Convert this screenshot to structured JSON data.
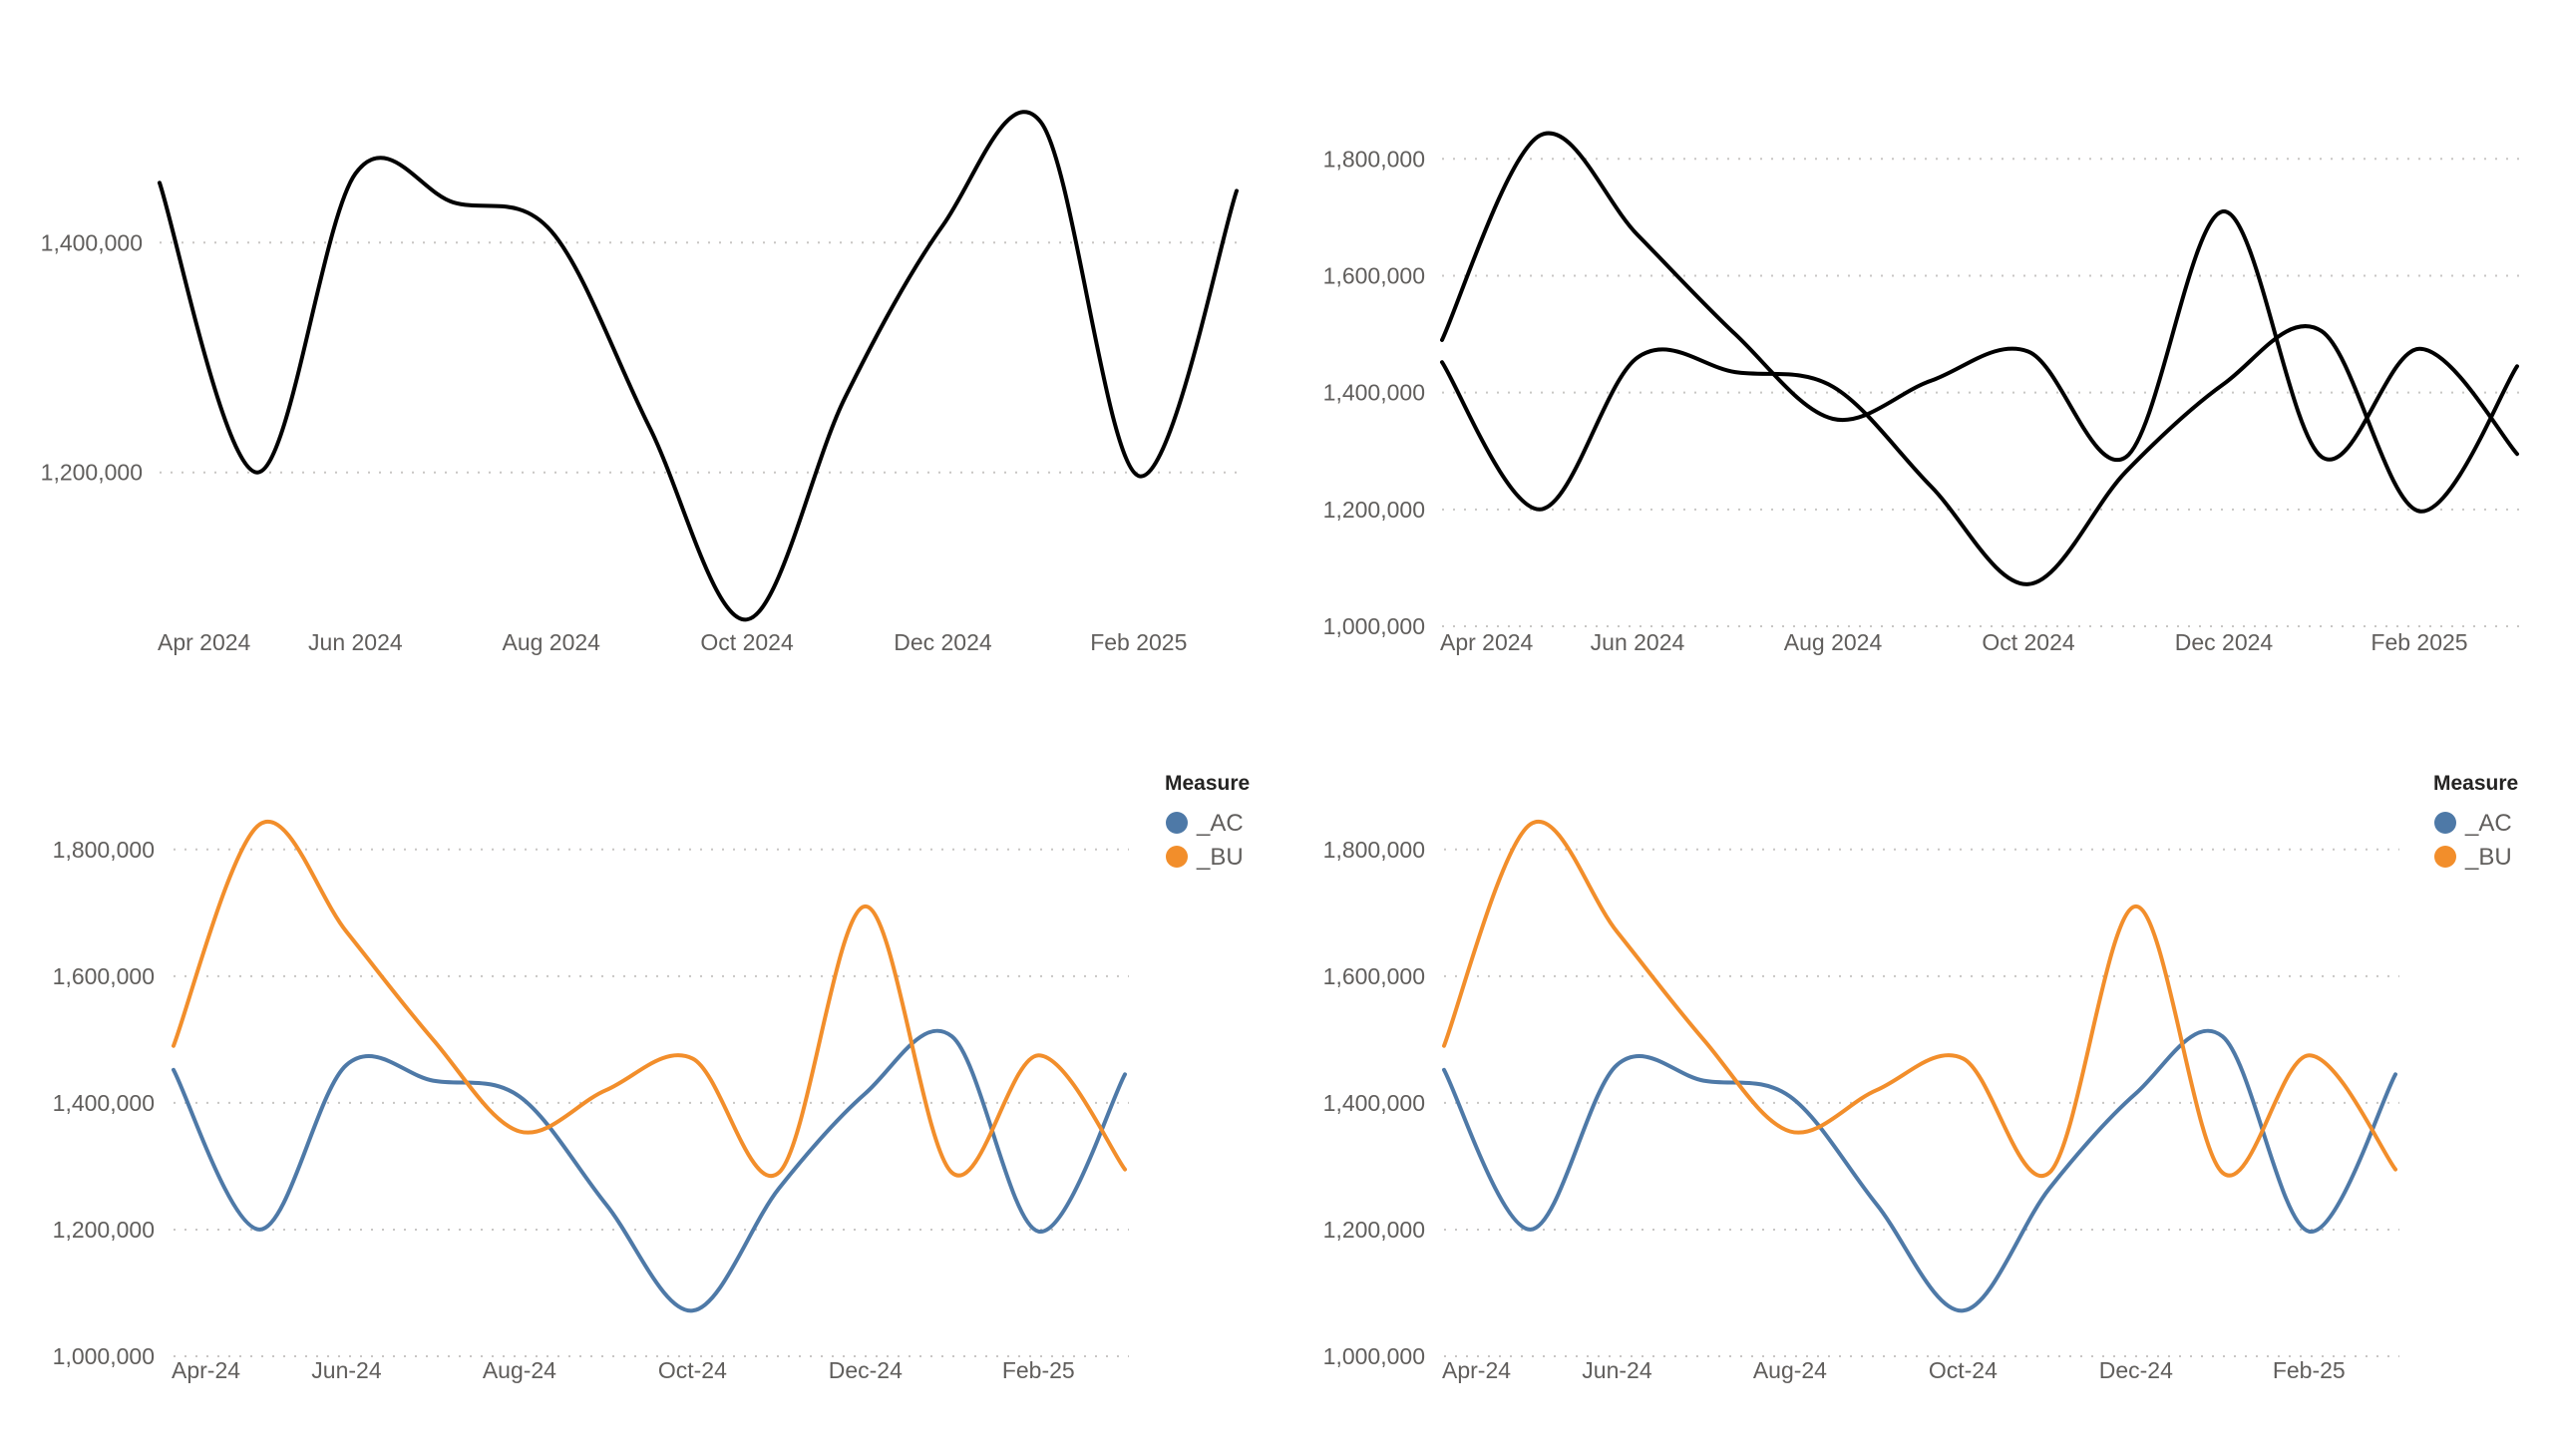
{
  "chart_data": [
    {
      "type": "line",
      "x": [
        "Apr 2024",
        "May 2024",
        "Jun 2024",
        "Jul 2024",
        "Aug 2024",
        "Sep 2024",
        "Oct 2024",
        "Nov 2024",
        "Dec 2024",
        "Jan 2025",
        "Feb 2025",
        "Mar 2025"
      ],
      "x_tick_labels": [
        "Apr 2024",
        "Jun 2024",
        "Aug 2024",
        "Oct 2024",
        "Dec 2024",
        "Feb 2025"
      ],
      "ylim": [
        1060000,
        1520000
      ],
      "y_ticks": [
        1200000,
        1400000
      ],
      "y_tick_labels": [
        "1,200,000",
        "1,400,000"
      ],
      "series": [
        {
          "values": [
            1452000,
            1200000,
            1460000,
            1435000,
            1410000,
            1240000,
            1072000,
            1265000,
            1415000,
            1505000,
            1197000,
            1445000
          ],
          "color": "#000000"
        }
      ],
      "grid": true,
      "legend": false
    },
    {
      "type": "line",
      "x": [
        "Apr 2024",
        "May 2024",
        "Jun 2024",
        "Jul 2024",
        "Aug 2024",
        "Sep 2024",
        "Oct 2024",
        "Nov 2024",
        "Dec 2024",
        "Jan 2025",
        "Feb 2025",
        "Mar 2025"
      ],
      "x_tick_labels": [
        "Apr 2024",
        "Jun 2024",
        "Aug 2024",
        "Oct 2024",
        "Dec 2024",
        "Feb 2025"
      ],
      "ylim": [
        1000000,
        1850000
      ],
      "y_ticks": [
        1000000,
        1200000,
        1400000,
        1600000,
        1800000
      ],
      "y_tick_labels": [
        "1,000,000",
        "1,200,000",
        "1,400,000",
        "1,600,000",
        "1,800,000"
      ],
      "series": [
        {
          "values": [
            1452000,
            1200000,
            1460000,
            1435000,
            1410000,
            1240000,
            1072000,
            1265000,
            1415000,
            1505000,
            1197000,
            1445000
          ],
          "color": "#000000"
        },
        {
          "values": [
            1490000,
            1840000,
            1670000,
            1500000,
            1355000,
            1420000,
            1470000,
            1290000,
            1710000,
            1290000,
            1475000,
            1295000
          ],
          "color": "#000000"
        }
      ],
      "grid": true,
      "legend": false
    },
    {
      "type": "line",
      "x": [
        "Apr-24",
        "May-24",
        "Jun-24",
        "Jul-24",
        "Aug-24",
        "Sep-24",
        "Oct-24",
        "Nov-24",
        "Dec-24",
        "Jan-25",
        "Feb-25",
        "Mar-25"
      ],
      "x_tick_labels": [
        "Apr-24",
        "Jun-24",
        "Aug-24",
        "Oct-24",
        "Dec-24",
        "Feb-25"
      ],
      "ylim": [
        1000000,
        1850000
      ],
      "y_ticks": [
        1000000,
        1200000,
        1400000,
        1600000,
        1800000
      ],
      "y_tick_labels": [
        "1,000,000",
        "1,200,000",
        "1,400,000",
        "1,600,000",
        "1,800,000"
      ],
      "series": [
        {
          "name": "_AC",
          "values": [
            1452000,
            1200000,
            1460000,
            1435000,
            1410000,
            1240000,
            1072000,
            1265000,
            1415000,
            1505000,
            1197000,
            1445000
          ],
          "color": "#4e79a7"
        },
        {
          "name": "_BU",
          "values": [
            1490000,
            1840000,
            1670000,
            1500000,
            1355000,
            1420000,
            1470000,
            1290000,
            1710000,
            1290000,
            1475000,
            1295000
          ],
          "color": "#f28e2b"
        }
      ],
      "legend_title": "Measure",
      "legend_position": "top-right",
      "grid": true,
      "legend": true
    },
    {
      "type": "line",
      "x": [
        "Apr-24",
        "May-24",
        "Jun-24",
        "Jul-24",
        "Aug-24",
        "Sep-24",
        "Oct-24",
        "Nov-24",
        "Dec-24",
        "Jan-25",
        "Feb-25",
        "Mar-25"
      ],
      "x_tick_labels": [
        "Apr-24",
        "Jun-24",
        "Aug-24",
        "Oct-24",
        "Dec-24",
        "Feb-25"
      ],
      "ylim": [
        1000000,
        1850000
      ],
      "y_ticks": [
        1000000,
        1200000,
        1400000,
        1600000,
        1800000
      ],
      "y_tick_labels": [
        "1,000,000",
        "1,200,000",
        "1,400,000",
        "1,600,000",
        "1,800,000"
      ],
      "series": [
        {
          "name": "_AC",
          "values": [
            1452000,
            1200000,
            1460000,
            1435000,
            1410000,
            1240000,
            1072000,
            1265000,
            1415000,
            1505000,
            1197000,
            1445000
          ],
          "color": "#4e79a7"
        },
        {
          "name": "_BU",
          "values": [
            1490000,
            1840000,
            1670000,
            1500000,
            1355000,
            1420000,
            1470000,
            1290000,
            1710000,
            1290000,
            1475000,
            1295000
          ],
          "color": "#f28e2b"
        }
      ],
      "legend_title": "Measure",
      "legend_position": "top-right",
      "grid": true,
      "legend": true
    }
  ]
}
